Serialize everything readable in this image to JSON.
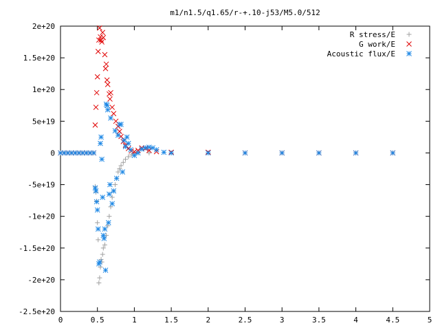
{
  "chart_data": {
    "type": "scatter",
    "title": "m1/n1.5/q1.65/r-+.10-j53/M5.0/512",
    "xlabel": "",
    "ylabel": "",
    "xlim": [
      0,
      5
    ],
    "ylim": [
      -2.5e+20,
      2e+20
    ],
    "x_ticks": [
      0,
      0.5,
      1,
      1.5,
      2,
      2.5,
      3,
      3.5,
      4,
      4.5,
      5
    ],
    "x_tick_labels": [
      "0",
      "0.5",
      "1",
      "1.5",
      "2",
      "2.5",
      "3",
      "3.5",
      "4",
      "4.5",
      "5"
    ],
    "y_ticks": [
      2e+20,
      1.5e+20,
      1e+20,
      5e+19,
      0,
      -5e+19,
      -1e+20,
      -1.5e+20,
      -2e+20,
      -2.5e+20
    ],
    "y_tick_labels": [
      "2e+20",
      "1.5e+20",
      "1e+20",
      "5e+19",
      "0",
      "-5e+19",
      "-1e+20",
      "-1.5e+20",
      "-2e+20",
      "-2.5e+20"
    ],
    "grid": false,
    "legend_position": "top-right",
    "series": [
      {
        "name": "R stress/E",
        "marker": "plus",
        "color": "#a0a0a0",
        "points": [
          [
            0.0,
            0
          ],
          [
            0.05,
            0
          ],
          [
            0.1,
            0
          ],
          [
            0.15,
            0
          ],
          [
            0.2,
            0
          ],
          [
            0.25,
            0
          ],
          [
            0.3,
            0
          ],
          [
            0.35,
            0
          ],
          [
            0.4,
            0
          ],
          [
            0.45,
            0
          ],
          [
            0.47,
            -5.3e+19
          ],
          [
            0.48,
            -6.2e+19
          ],
          [
            0.49,
            -7.6e+19
          ],
          [
            0.5,
            -1.1e+20
          ],
          [
            0.51,
            -1.37e+20
          ],
          [
            0.52,
            -2.05e+20
          ],
          [
            0.53,
            -1.97e+20
          ],
          [
            0.54,
            -1.8e+20
          ],
          [
            0.55,
            -1.68e+20
          ],
          [
            0.56,
            -1.72e+20
          ],
          [
            0.57,
            -1.6e+20
          ],
          [
            0.58,
            -1.5e+20
          ],
          [
            0.6,
            -1.45e+20
          ],
          [
            0.62,
            -1.3e+20
          ],
          [
            0.64,
            -1.15e+20
          ],
          [
            0.66,
            -1e+20
          ],
          [
            0.68,
            -8.5e+19
          ],
          [
            0.7,
            -7e+19
          ],
          [
            0.72,
            -6e+19
          ],
          [
            0.74,
            -5e+19
          ],
          [
            0.76,
            -4e+19
          ],
          [
            0.78,
            -3e+19
          ],
          [
            0.8,
            -2.5e+19
          ],
          [
            0.82,
            -2e+19
          ],
          [
            0.85,
            -1.5e+19
          ],
          [
            0.88,
            -1e+19
          ],
          [
            0.92,
            -6e+18
          ],
          [
            0.96,
            -3e+18
          ],
          [
            1.0,
            -1e+18
          ],
          [
            1.05,
            0
          ],
          [
            1.2,
            0
          ],
          [
            1.5,
            0
          ],
          [
            2.0,
            0
          ],
          [
            2.5,
            0
          ],
          [
            3.0,
            0
          ],
          [
            3.5,
            0
          ],
          [
            4.0,
            0
          ],
          [
            4.5,
            0
          ]
        ]
      },
      {
        "name": "G work/E",
        "marker": "cross",
        "color": "#e00000",
        "points": [
          [
            0.0,
            0
          ],
          [
            0.05,
            0
          ],
          [
            0.1,
            0
          ],
          [
            0.15,
            0
          ],
          [
            0.2,
            0
          ],
          [
            0.25,
            0
          ],
          [
            0.3,
            0
          ],
          [
            0.35,
            0
          ],
          [
            0.4,
            0
          ],
          [
            0.45,
            0
          ],
          [
            0.47,
            4.4e+19
          ],
          [
            0.48,
            7.2e+19
          ],
          [
            0.49,
            9.5e+19
          ],
          [
            0.5,
            1.2e+20
          ],
          [
            0.51,
            1.6e+20
          ],
          [
            0.52,
            1.78e+20
          ],
          [
            0.53,
            1.97e+20
          ],
          [
            0.54,
            1.83e+20
          ],
          [
            0.55,
            1.78e+20
          ],
          [
            0.56,
            1.75e+20
          ],
          [
            0.57,
            1.9e+20
          ],
          [
            0.58,
            1.82e+20
          ],
          [
            0.6,
            1.55e+20
          ],
          [
            0.61,
            1.33e+20
          ],
          [
            0.62,
            1.4e+20
          ],
          [
            0.63,
            1.15e+20
          ],
          [
            0.64,
            1.08e+20
          ],
          [
            0.66,
            9.3e+19
          ],
          [
            0.67,
            8.5e+19
          ],
          [
            0.68,
            9.5e+19
          ],
          [
            0.7,
            7.2e+19
          ],
          [
            0.72,
            6.2e+19
          ],
          [
            0.75,
            5e+19
          ],
          [
            0.78,
            4.2e+19
          ],
          [
            0.8,
            3.4e+19
          ],
          [
            0.82,
            2.6e+19
          ],
          [
            0.85,
            1.8e+19
          ],
          [
            0.88,
            1.2e+19
          ],
          [
            0.92,
            7e+18
          ],
          [
            0.96,
            3e+18
          ],
          [
            1.0,
            2e+18
          ],
          [
            1.05,
            4e+18
          ],
          [
            1.1,
            8e+18
          ],
          [
            1.15,
            7e+18
          ],
          [
            1.2,
            4e+18
          ],
          [
            1.3,
            2e+18
          ],
          [
            1.5,
            1e+18
          ],
          [
            2.0,
            1e+18
          ],
          [
            2.5,
            0
          ],
          [
            3.0,
            0
          ],
          [
            3.5,
            0
          ],
          [
            4.0,
            0
          ],
          [
            4.5,
            0
          ]
        ]
      },
      {
        "name": "Acoustic flux/E",
        "marker": "star",
        "color": "#1e88e5",
        "points": [
          [
            0.0,
            0
          ],
          [
            0.05,
            0
          ],
          [
            0.1,
            0
          ],
          [
            0.15,
            0
          ],
          [
            0.2,
            0
          ],
          [
            0.25,
            0
          ],
          [
            0.3,
            0
          ],
          [
            0.35,
            0
          ],
          [
            0.4,
            0
          ],
          [
            0.45,
            0
          ],
          [
            0.47,
            -5.5e+19
          ],
          [
            0.48,
            -6e+19
          ],
          [
            0.49,
            -7.7e+19
          ],
          [
            0.5,
            -9e+19
          ],
          [
            0.51,
            -1.2e+20
          ],
          [
            0.52,
            -1.75e+20
          ],
          [
            0.53,
            -1.72e+20
          ],
          [
            0.54,
            1.5e+19
          ],
          [
            0.55,
            2.5e+19
          ],
          [
            0.56,
            -1e+19
          ],
          [
            0.57,
            -7e+19
          ],
          [
            0.58,
            -1.3e+20
          ],
          [
            0.59,
            -1.35e+20
          ],
          [
            0.6,
            -1.2e+20
          ],
          [
            0.61,
            -1.85e+20
          ],
          [
            0.62,
            7.7e+19
          ],
          [
            0.63,
            7.5e+19
          ],
          [
            0.64,
            6.8e+19
          ],
          [
            0.65,
            -1.1e+20
          ],
          [
            0.66,
            -6.5e+19
          ],
          [
            0.67,
            -5e+19
          ],
          [
            0.68,
            5.5e+19
          ],
          [
            0.7,
            -8e+19
          ],
          [
            0.72,
            -6e+19
          ],
          [
            0.74,
            3.5e+19
          ],
          [
            0.76,
            -4e+19
          ],
          [
            0.78,
            2.8e+19
          ],
          [
            0.8,
            4.5e+19
          ],
          [
            0.82,
            4.5e+19
          ],
          [
            0.84,
            -3e+19
          ],
          [
            0.86,
            2e+19
          ],
          [
            0.88,
            1e+19
          ],
          [
            0.9,
            2.5e+19
          ],
          [
            0.92,
            1.5e+19
          ],
          [
            0.95,
            5e+18
          ],
          [
            1.0,
            -4e+18
          ],
          [
            1.05,
            0
          ],
          [
            1.1,
            6e+18
          ],
          [
            1.15,
            8e+18
          ],
          [
            1.2,
            9e+18
          ],
          [
            1.25,
            8e+18
          ],
          [
            1.3,
            5e+18
          ],
          [
            1.4,
            1e+18
          ],
          [
            1.5,
            0
          ],
          [
            2.0,
            0
          ],
          [
            2.5,
            0
          ],
          [
            3.0,
            0
          ],
          [
            3.5,
            0
          ],
          [
            4.0,
            0
          ],
          [
            4.5,
            0
          ]
        ]
      }
    ]
  }
}
